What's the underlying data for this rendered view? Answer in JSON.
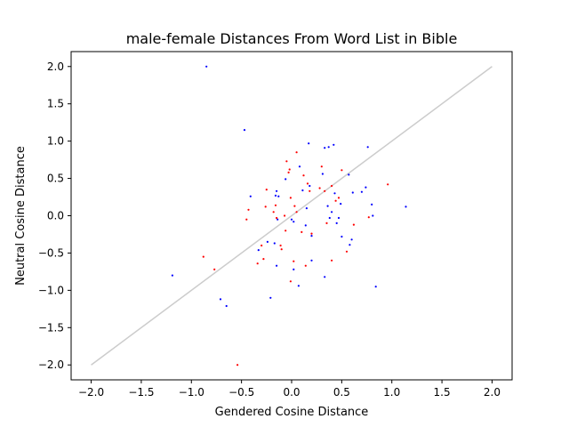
{
  "chart_data": {
    "type": "scatter",
    "title": "male-female Distances From Word List in Bible",
    "xlabel": "Gendered Cosine Distance",
    "ylabel": "Neutral Cosine Distance",
    "xlim": [
      -2.2,
      2.2
    ],
    "ylim": [
      -2.2,
      2.2
    ],
    "xticks": [
      -2.0,
      -1.5,
      -1.0,
      -0.5,
      0.0,
      0.5,
      1.0,
      1.5,
      2.0
    ],
    "yticks": [
      -2.0,
      -1.5,
      -1.0,
      -0.5,
      0.0,
      0.5,
      1.0,
      1.5,
      2.0
    ],
    "xtick_labels": [
      "−2.0",
      "−1.5",
      "−1.0",
      "−0.5",
      "0.0",
      "0.5",
      "1.0",
      "1.5",
      "2.0"
    ],
    "ytick_labels": [
      "−2.0",
      "−1.5",
      "−1.0",
      "−0.5",
      "0.0",
      "0.5",
      "1.0",
      "1.5",
      "2.0"
    ],
    "grid": false,
    "legend": "none",
    "reference_line": {
      "x": [
        -2.0,
        2.0
      ],
      "y": [
        -2.0,
        2.0
      ],
      "color": "#cccccc"
    },
    "series": [
      {
        "color": "#0000ff",
        "points": [
          [
            -0.85,
            2.0
          ],
          [
            -0.47,
            1.15
          ],
          [
            0.17,
            0.97
          ],
          [
            0.42,
            0.95
          ],
          [
            0.76,
            0.92
          ],
          [
            0.33,
            0.91
          ],
          [
            0.37,
            0.92
          ],
          [
            0.08,
            0.66
          ],
          [
            0.31,
            0.56
          ],
          [
            0.57,
            0.55
          ],
          [
            -0.06,
            0.49
          ],
          [
            0.18,
            0.4
          ],
          [
            0.11,
            0.34
          ],
          [
            0.74,
            0.38
          ],
          [
            0.61,
            0.31
          ],
          [
            0.7,
            0.32
          ],
          [
            -0.15,
            0.33
          ],
          [
            -0.16,
            0.27
          ],
          [
            0.43,
            0.3
          ],
          [
            -0.41,
            0.26
          ],
          [
            -0.13,
            0.26
          ],
          [
            0.8,
            0.15
          ],
          [
            0.49,
            0.16
          ],
          [
            0.36,
            0.13
          ],
          [
            0.15,
            0.1
          ],
          [
            1.14,
            0.12
          ],
          [
            0.4,
            0.05
          ],
          [
            0.38,
            -0.03
          ],
          [
            0.47,
            -0.03
          ],
          [
            0.81,
            0.0
          ],
          [
            -0.14,
            -0.05
          ],
          [
            0.0,
            -0.05
          ],
          [
            0.02,
            -0.08
          ],
          [
            0.45,
            -0.1
          ],
          [
            0.14,
            -0.13
          ],
          [
            0.2,
            -0.27
          ],
          [
            0.5,
            -0.28
          ],
          [
            0.6,
            -0.32
          ],
          [
            -0.24,
            -0.35
          ],
          [
            -0.17,
            -0.37
          ],
          [
            0.58,
            -0.39
          ],
          [
            -0.33,
            -0.46
          ],
          [
            0.2,
            -0.6
          ],
          [
            -0.15,
            -0.67
          ],
          [
            0.02,
            -0.72
          ],
          [
            0.33,
            -0.82
          ],
          [
            -1.19,
            -0.8
          ],
          [
            0.07,
            -0.94
          ],
          [
            0.84,
            -0.95
          ],
          [
            -0.21,
            -1.1
          ],
          [
            -0.71,
            -1.12
          ],
          [
            -0.65,
            -1.21
          ]
        ]
      },
      {
        "color": "#ff0000",
        "points": [
          [
            0.05,
            0.85
          ],
          [
            -0.05,
            0.73
          ],
          [
            -0.02,
            0.62
          ],
          [
            -0.03,
            0.58
          ],
          [
            0.3,
            0.66
          ],
          [
            0.5,
            0.61
          ],
          [
            0.12,
            0.54
          ],
          [
            0.28,
            0.37
          ],
          [
            0.33,
            0.33
          ],
          [
            0.16,
            0.43
          ],
          [
            0.18,
            0.33
          ],
          [
            0.4,
            0.4
          ],
          [
            -0.25,
            0.35
          ],
          [
            0.96,
            0.42
          ],
          [
            0.47,
            0.24
          ],
          [
            0.44,
            0.2
          ],
          [
            -0.01,
            0.24
          ],
          [
            -0.43,
            0.08
          ],
          [
            -0.26,
            0.12
          ],
          [
            -0.16,
            0.14
          ],
          [
            0.03,
            0.13
          ],
          [
            -0.18,
            0.05
          ],
          [
            -0.07,
            0.0
          ],
          [
            -0.45,
            -0.05
          ],
          [
            -0.15,
            -0.03
          ],
          [
            0.05,
            0.05
          ],
          [
            0.77,
            -0.02
          ],
          [
            0.35,
            -0.1
          ],
          [
            0.1,
            -0.22
          ],
          [
            0.62,
            -0.12
          ],
          [
            0.2,
            -0.24
          ],
          [
            -0.06,
            -0.2
          ],
          [
            0.55,
            -0.48
          ],
          [
            -0.11,
            -0.4
          ],
          [
            -0.1,
            -0.45
          ],
          [
            -0.3,
            -0.4
          ],
          [
            -0.28,
            -0.58
          ],
          [
            -0.34,
            -0.64
          ],
          [
            0.14,
            -0.67
          ],
          [
            0.4,
            -0.6
          ],
          [
            0.02,
            -0.61
          ],
          [
            -0.88,
            -0.55
          ],
          [
            -0.77,
            -0.72
          ],
          [
            -0.01,
            -0.88
          ],
          [
            -0.54,
            -2.0
          ]
        ]
      }
    ]
  }
}
